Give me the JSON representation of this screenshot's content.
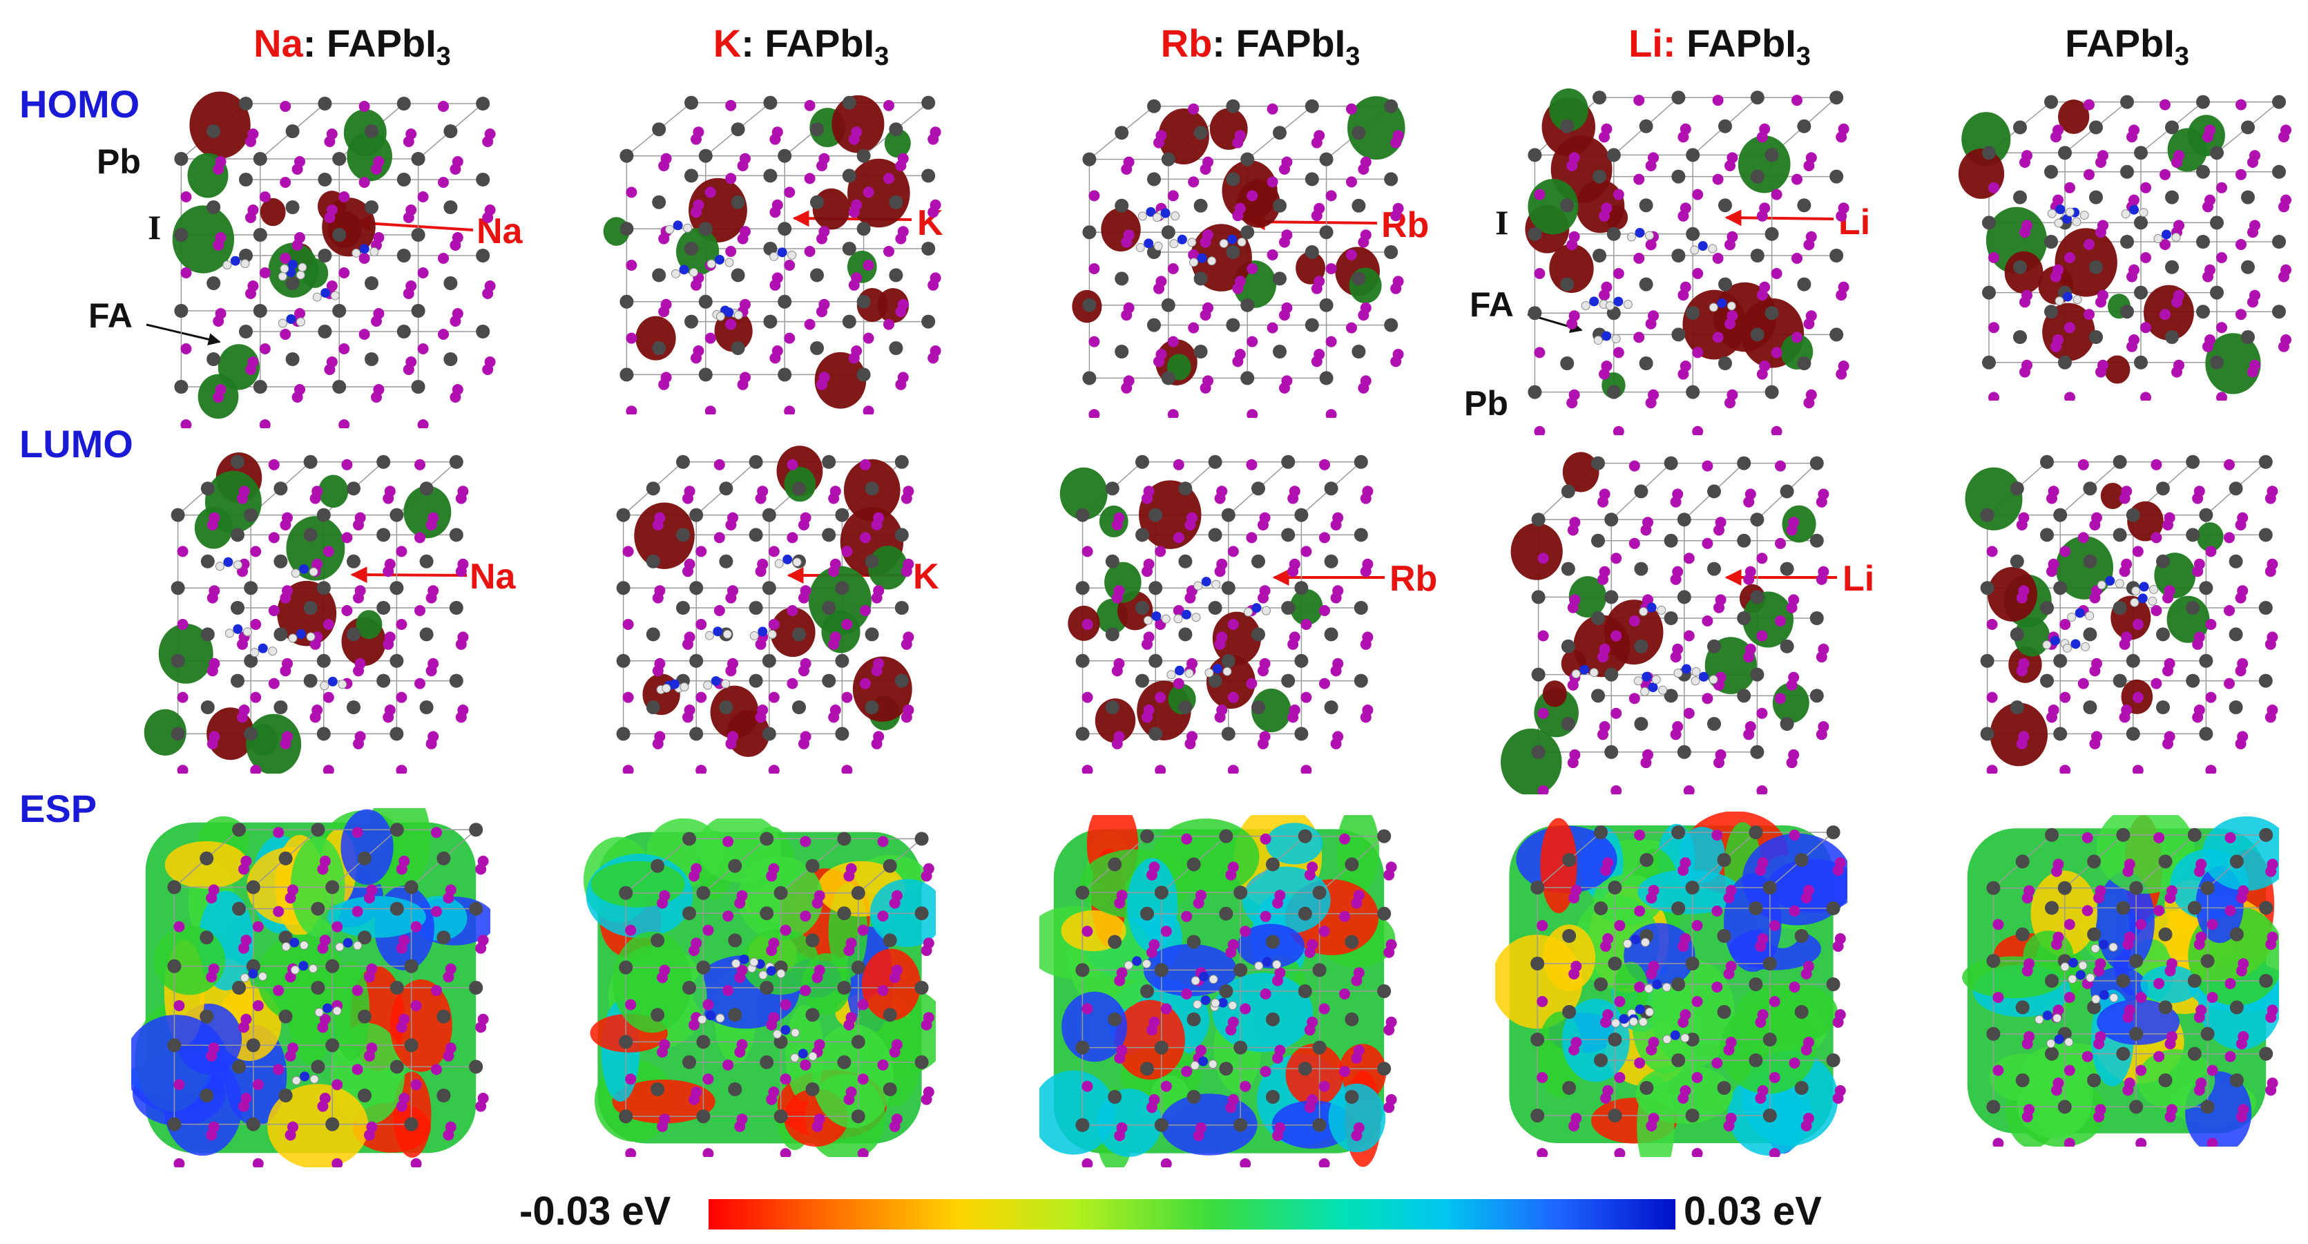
{
  "columns": [
    {
      "dopant": "Na",
      "sep": ": ",
      "base": "FAPbI",
      "sub": "3"
    },
    {
      "dopant": "K",
      "sep": ": ",
      "base": "FAPbI",
      "sub": "3"
    },
    {
      "dopant": "Rb",
      "sep": ": ",
      "base": "FAPbI",
      "sub": "3"
    },
    {
      "dopant": "Li:",
      "sep": " ",
      "base": "FAPbI",
      "sub": "3"
    },
    {
      "dopant": "",
      "sep": "",
      "base": "FAPbI",
      "sub": "3"
    }
  ],
  "rows": {
    "homo": "HOMO",
    "lumo": "LUMO",
    "esp": "ESP"
  },
  "atom_labels": {
    "pb": "Pb",
    "i": "I",
    "fa": "FA"
  },
  "arrow_labels": {
    "na": "Na",
    "k": "K",
    "rb": "Rb",
    "li": "Li"
  },
  "colorbar": {
    "min_label": "-0.03 eV",
    "max_label": "0.03 eV"
  },
  "colors": {
    "pb_atom": "#4a4a4a",
    "i_atom": "#b010b0",
    "n_atom": "#1a2ad8",
    "h_atom": "#e6e6e6",
    "orbital_pos": "#7a0d0d",
    "orbital_neg": "#1f7a1f",
    "arrow": "#e8130f",
    "row_label": "#1a1ad6"
  }
}
